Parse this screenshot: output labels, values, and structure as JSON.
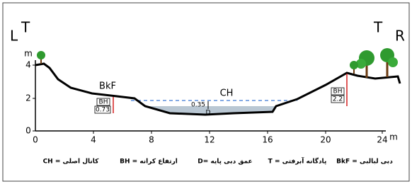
{
  "corners": {
    "left_bank": "L",
    "right_bank": "R",
    "left_terrace": "T",
    "right_terrace": "T"
  },
  "axes": {
    "y_unit": "m",
    "x_unit": "m",
    "y_ticks": [
      "0",
      "2",
      "4"
    ],
    "x_ticks": [
      "0",
      "4",
      "8",
      "12",
      "16",
      "20",
      "24"
    ]
  },
  "labels": {
    "bankfull": "BkF",
    "channel": "CH",
    "base_depth_value": "0.35",
    "base_depth": "D",
    "left_bank_height": {
      "label": "BH",
      "value": "0.73"
    },
    "right_bank_height": {
      "label": "BH",
      "value": "2.2"
    }
  },
  "legend": [
    "کانال اصلی = CH",
    "ارتفاع کرانه = BH",
    "عمق دبی پایه =D",
    "پادگانه آبرفتی = T",
    "دبی لبالبی = BkF"
  ]
}
